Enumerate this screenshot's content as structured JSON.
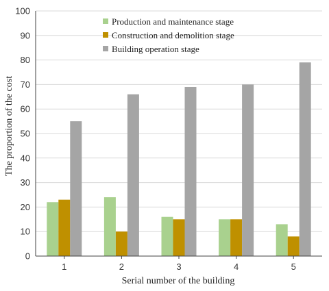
{
  "chart_data": {
    "type": "bar",
    "categories": [
      "1",
      "2",
      "3",
      "4",
      "5"
    ],
    "series": [
      {
        "name": "Production and maintenance stage",
        "values": [
          22,
          24,
          16,
          15,
          13
        ],
        "color": "#a9d18e"
      },
      {
        "name": "Construction and demolition stage",
        "values": [
          23,
          10,
          15,
          15,
          8
        ],
        "color": "#bf9000"
      },
      {
        "name": "Building operation stage",
        "values": [
          55,
          66,
          69,
          70,
          79
        ],
        "color": "#a5a5a5"
      }
    ],
    "xlabel": "Serial number of the building",
    "ylabel": "The proportion of the cost",
    "ylim": [
      0,
      100
    ],
    "yticks": [
      0,
      10,
      20,
      30,
      40,
      50,
      60,
      70,
      80,
      90,
      100
    ],
    "grid": true,
    "legend": "top-center"
  }
}
